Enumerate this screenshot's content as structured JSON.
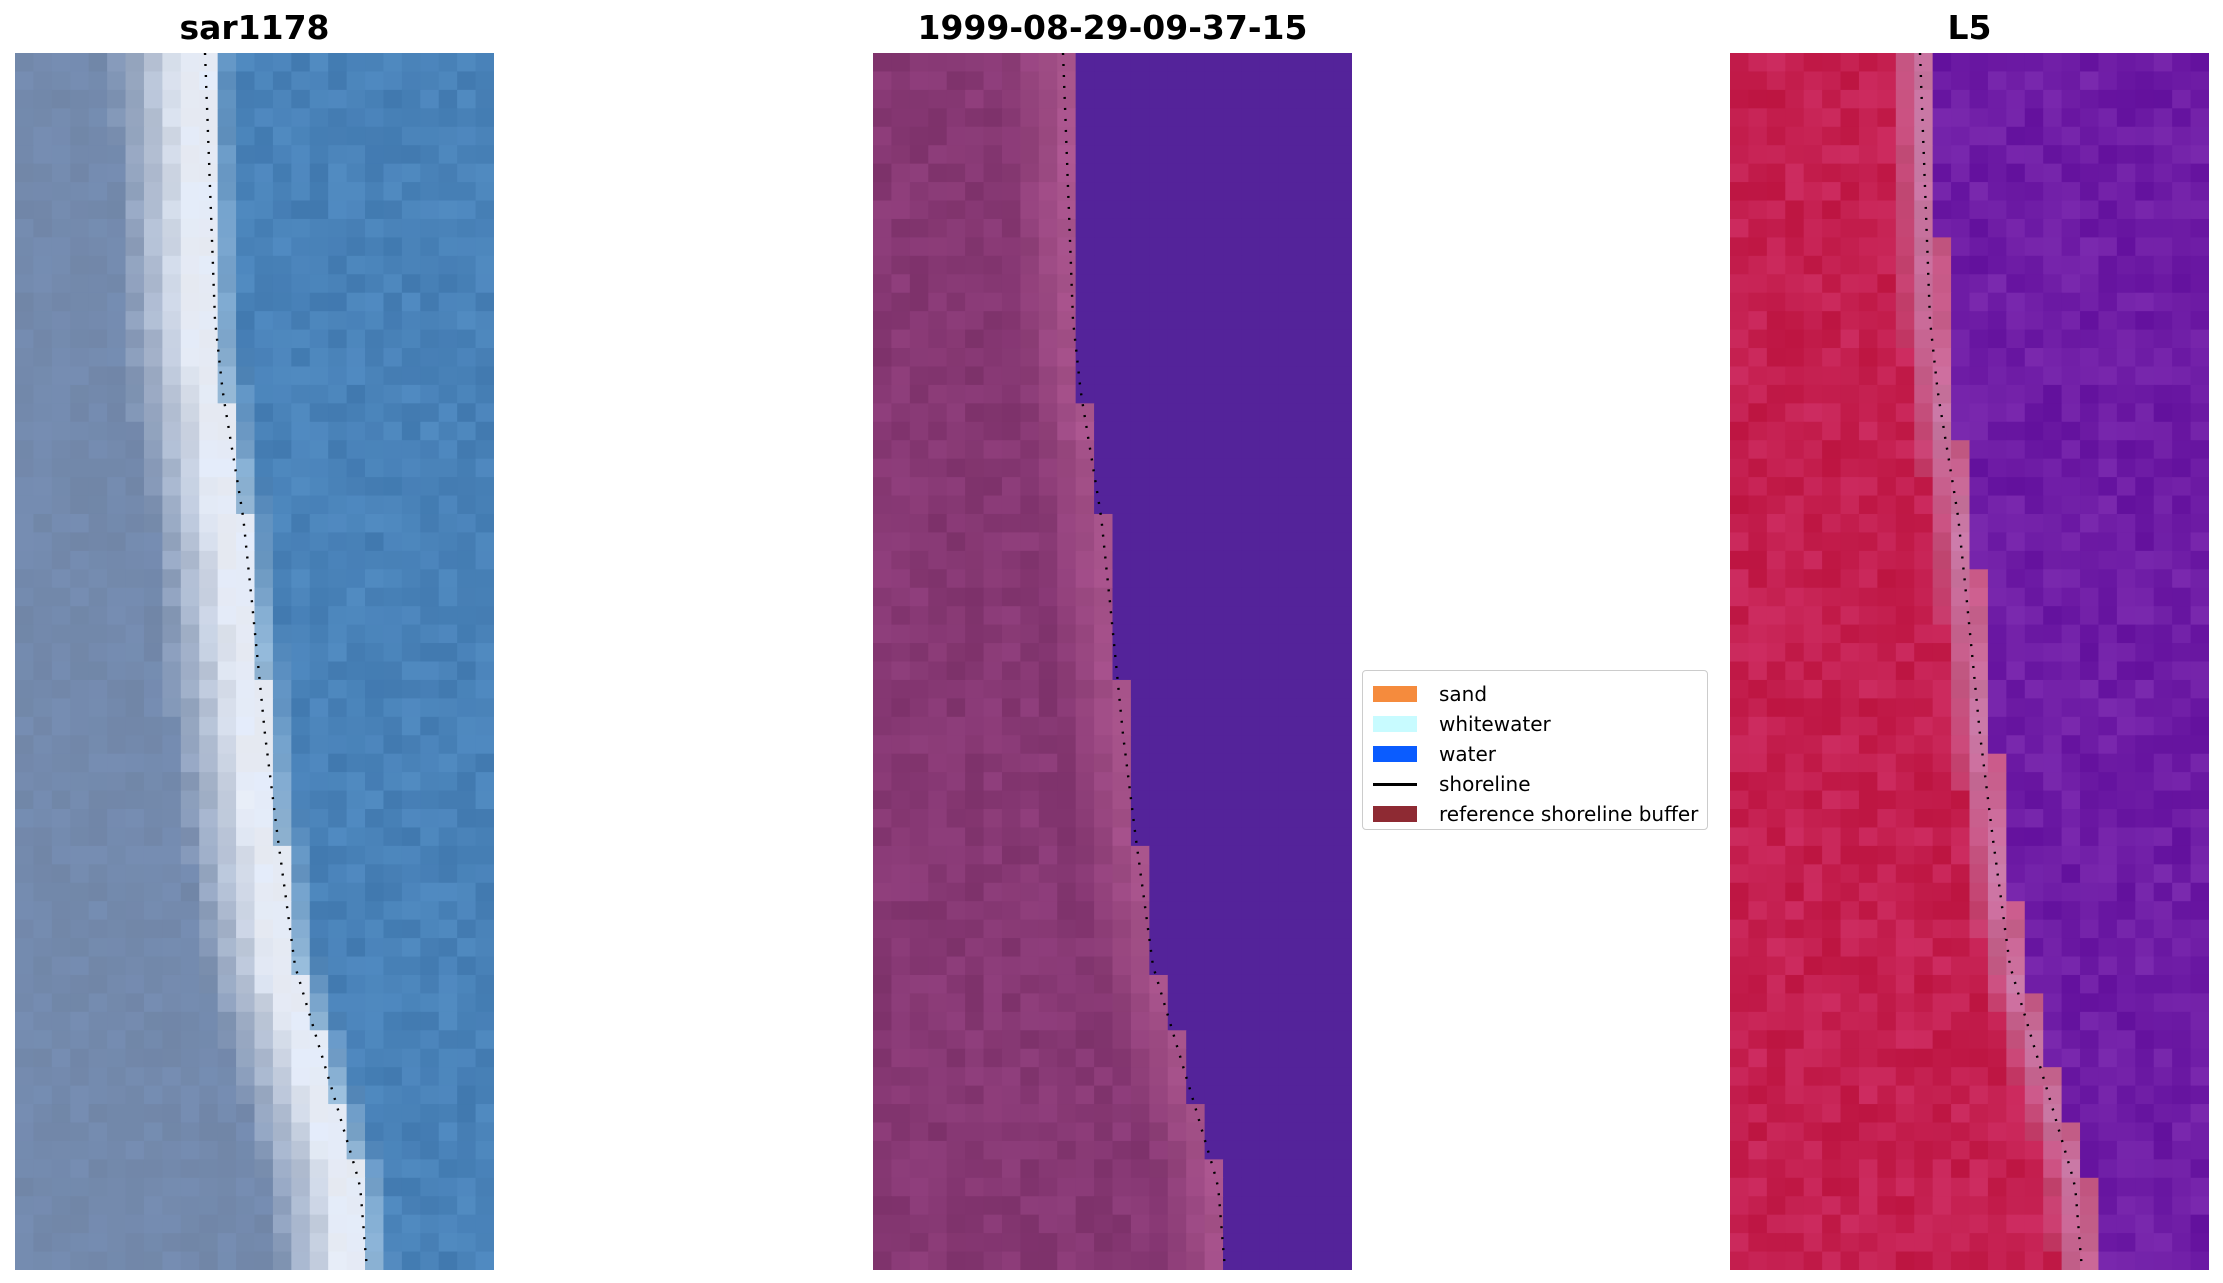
{
  "panels": [
    {
      "title": "sar1178"
    },
    {
      "title": "1999-08-29-09-37-15"
    },
    {
      "title": "L5"
    }
  ],
  "legend": {
    "items": [
      {
        "label": "sand",
        "color": "#f58b3d",
        "kind": "patch"
      },
      {
        "label": "whitewater",
        "color": "#c8fbff",
        "kind": "patch"
      },
      {
        "label": "water",
        "color": "#0a5cff",
        "kind": "patch"
      },
      {
        "label": "shoreline",
        "color": "#000000",
        "kind": "line"
      },
      {
        "label": "reference shoreline buffer",
        "color": "#8e2a33",
        "kind": "patch"
      }
    ]
  },
  "colors": {
    "rgb_water": "#4a82b8",
    "rgb_sand": "#7a8fb0",
    "rgb_whitewater": "#eef2fa",
    "class_land": "#833570",
    "class_swash": "#b05a92",
    "class_water": "#54239a",
    "index_land": "#c41848",
    "index_swash": "#c87aa6",
    "index_water": "#6a14a4"
  },
  "icons": {
    "panel-images": "satellite-tile-image"
  }
}
